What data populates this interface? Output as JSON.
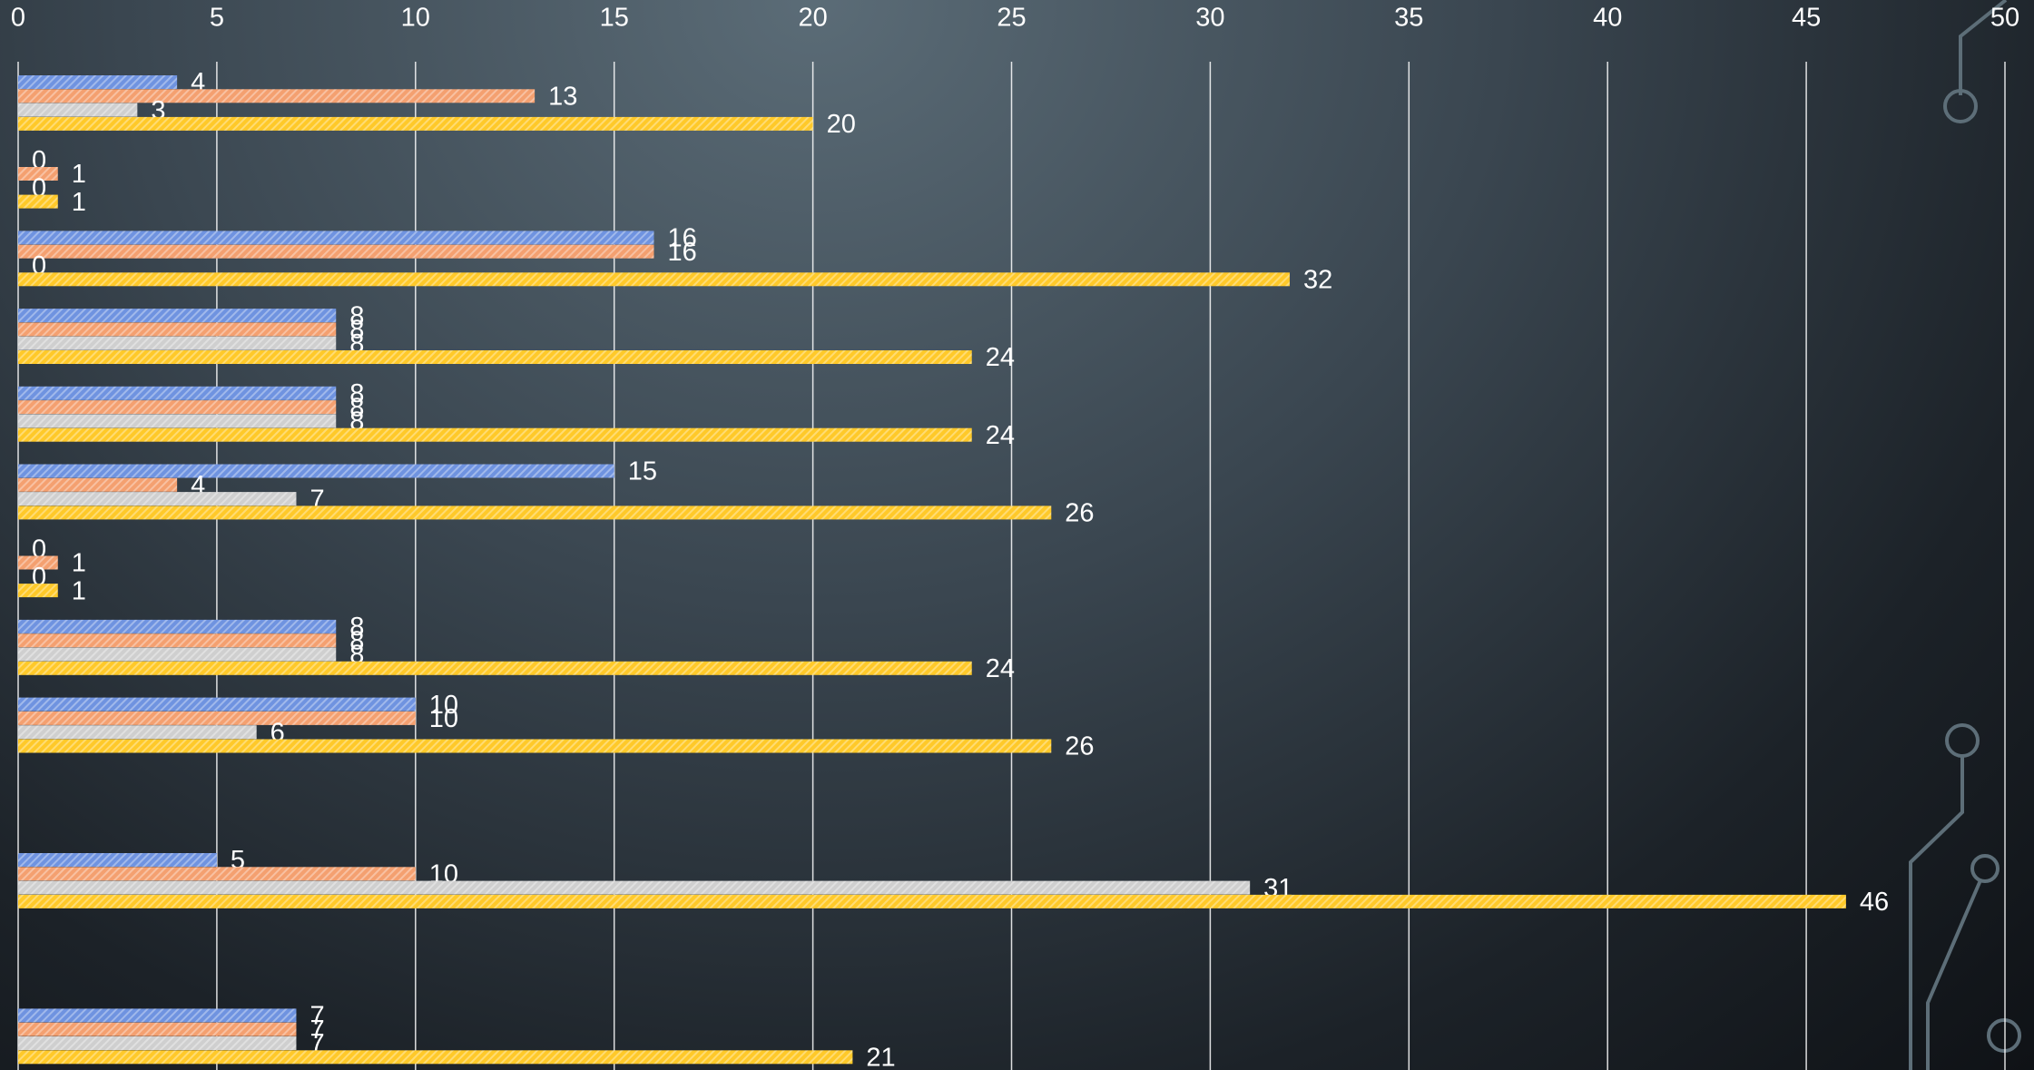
{
  "chart_data": {
    "type": "hbar",
    "categories": [
      null,
      null,
      null,
      null,
      null,
      null,
      null,
      null,
      null,
      null,
      null,
      null,
      null
    ],
    "series": [
      {
        "color": "#6f93e0",
        "values": [
          4,
          0,
          16,
          8,
          8,
          15,
          0,
          8,
          10,
          null,
          5,
          null,
          7
        ]
      },
      {
        "color": "#f4a070",
        "values": [
          13,
          1,
          16,
          8,
          8,
          4,
          1,
          8,
          10,
          null,
          10,
          null,
          7
        ]
      },
      {
        "color": "#cfcfcf",
        "values": [
          3,
          0,
          0,
          8,
          8,
          7,
          0,
          8,
          6,
          null,
          31,
          null,
          7
        ]
      },
      {
        "color": "#ffc929",
        "values": [
          20,
          1,
          32,
          24,
          24,
          26,
          1,
          24,
          26,
          null,
          46,
          null,
          21
        ]
      }
    ],
    "xlim": [
      0,
      50
    ],
    "xticks": [
      0,
      5,
      10,
      15,
      20,
      25,
      30,
      35,
      40,
      45,
      50
    ],
    "grid": true,
    "data_labels": true
  }
}
